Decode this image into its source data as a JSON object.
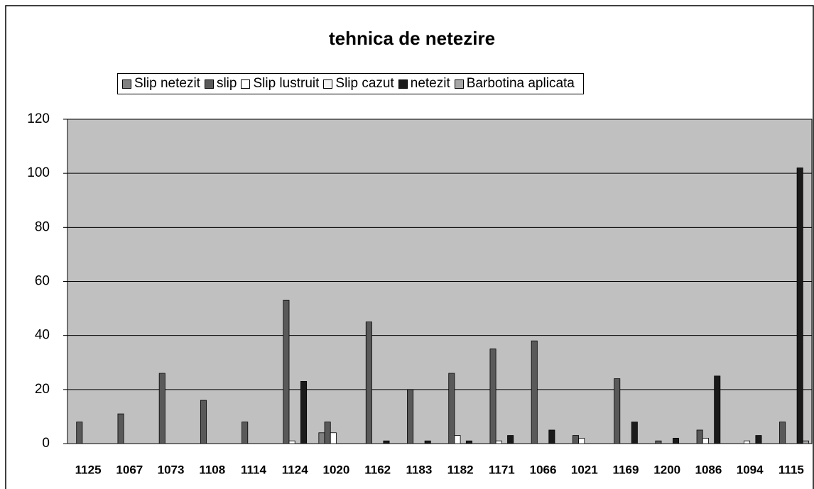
{
  "chart_data": {
    "type": "bar",
    "title": "tehnica de netezire",
    "categories": [
      "1125",
      "1067",
      "1073",
      "1108",
      "1114",
      "1124",
      "1020",
      "1162",
      "1183",
      "1182",
      "1171",
      "1066",
      "1021",
      "1169",
      "1200",
      "1086",
      "1094",
      "1115"
    ],
    "series": [
      {
        "name": "Slip netezit",
        "color": "#808080",
        "values": [
          0,
          0,
          0,
          0,
          0,
          0,
          4,
          0,
          0,
          0,
          0,
          0,
          0,
          0,
          0,
          0,
          0,
          0
        ]
      },
      {
        "name": "slip",
        "color": "#595959",
        "values": [
          8,
          11,
          26,
          16,
          8,
          53,
          8,
          45,
          20,
          26,
          35,
          38,
          3,
          24,
          1,
          5,
          0,
          8
        ]
      },
      {
        "name": "Slip lustruit",
        "color": "#ffffff",
        "values": [
          0,
          0,
          0,
          0,
          0,
          1,
          4,
          0,
          0,
          3,
          1,
          0,
          2,
          0,
          0,
          2,
          1,
          0
        ]
      },
      {
        "name": "Slip cazut",
        "color": "#f4f4f4",
        "values": [
          0,
          0,
          0,
          0,
          0,
          0,
          0,
          0,
          0,
          0,
          0,
          0,
          0,
          0,
          0,
          0,
          0,
          0
        ]
      },
      {
        "name": "netezit",
        "color": "#1a1a1a",
        "values": [
          0,
          0,
          0,
          0,
          0,
          23,
          0,
          1,
          1,
          1,
          3,
          5,
          0,
          8,
          2,
          25,
          3,
          102
        ]
      },
      {
        "name": "Barbotina aplicata",
        "color": "#a6a6a6",
        "values": [
          0,
          0,
          0,
          0,
          0,
          0,
          0,
          0,
          0,
          0,
          0,
          0,
          0,
          0,
          0,
          0,
          0,
          1
        ]
      }
    ],
    "ylim": [
      0,
      120
    ],
    "yticks": [
      0,
      20,
      40,
      60,
      80,
      100,
      120
    ],
    "grid": true,
    "plot_background": "#c0c0c0"
  }
}
